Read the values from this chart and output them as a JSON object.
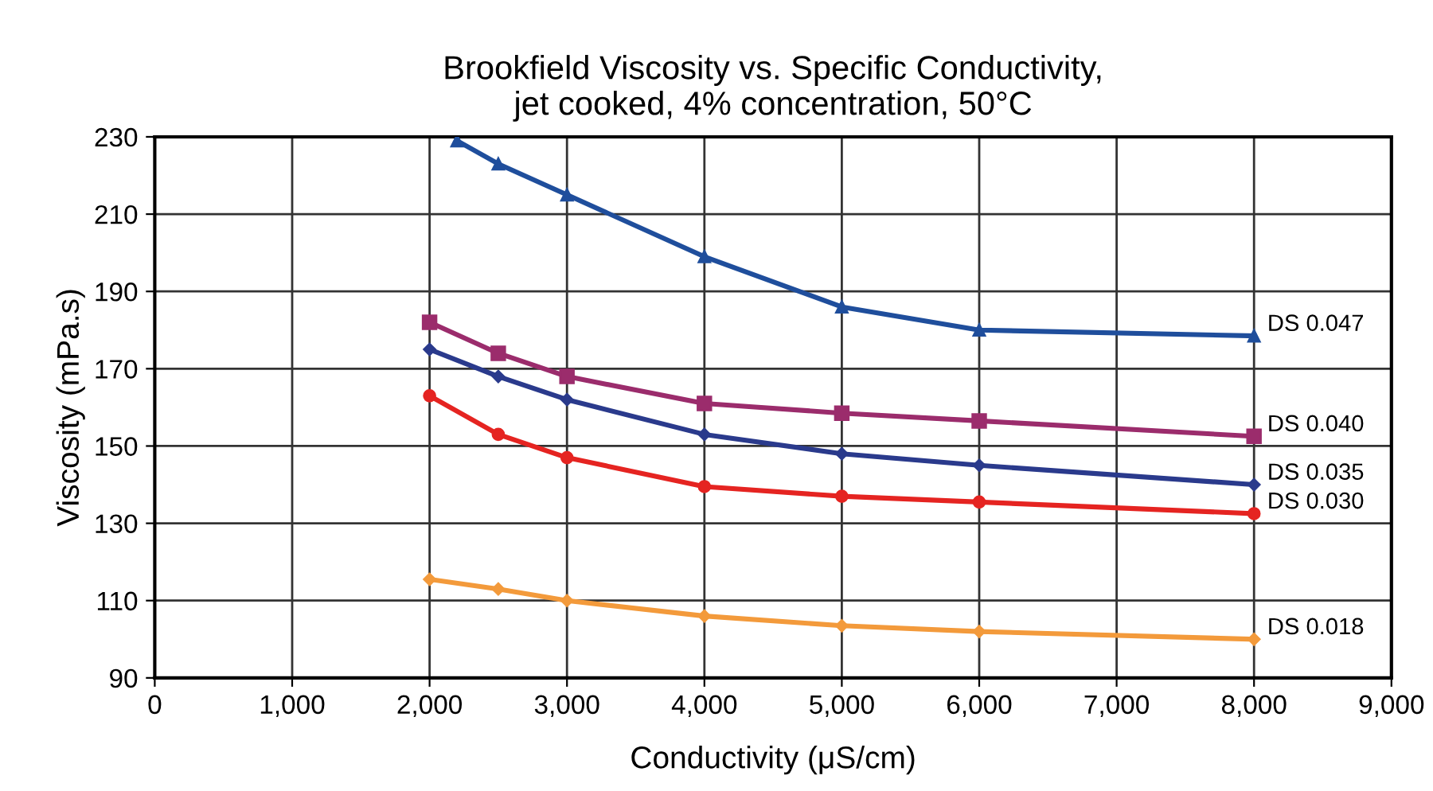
{
  "chart_data": {
    "type": "line",
    "title": "Brookfield Viscosity vs. Specific Conductivity,\njet cooked, 4% concentration, 50°C",
    "xlabel": "Conductivity (μS/cm)",
    "ylabel": "Viscosity (mPa.s)",
    "xlim": [
      0,
      9000
    ],
    "xticks": [
      0,
      {
        "value": 1000,
        "label": "1,000"
      },
      {
        "value": 2000,
        "label": "2,000"
      },
      {
        "value": 3000,
        "label": "3,000"
      },
      {
        "value": 4000,
        "label": "4,000"
      },
      {
        "value": 5000,
        "label": "5,000"
      },
      {
        "value": 6000,
        "label": "6,000"
      },
      {
        "value": 7000,
        "label": "7,000"
      },
      {
        "value": 8000,
        "label": "8,000"
      },
      {
        "value": 9000,
        "label": "9,000"
      }
    ],
    "ylim": [
      90,
      230
    ],
    "yticks": [
      90,
      110,
      130,
      150,
      170,
      190,
      210,
      230
    ],
    "grid": true,
    "legend": false,
    "line_style": "solid",
    "series": [
      {
        "name": "DS 0.047",
        "color": "#1f4e9c",
        "marker": "triangle",
        "x": [
          2200,
          2500,
          3000,
          4000,
          5000,
          6000,
          8000
        ],
        "values": [
          229,
          223,
          215,
          199,
          186,
          180,
          178.5
        ]
      },
      {
        "name": "DS 0.040",
        "color": "#9b2c6c",
        "marker": "square",
        "x": [
          2000,
          2500,
          3000,
          4000,
          5000,
          6000,
          8000
        ],
        "values": [
          182,
          174,
          168,
          161,
          158.5,
          156.5,
          152.5
        ]
      },
      {
        "name": "DS 0.035",
        "color": "#2a3a8c",
        "marker": "diamond",
        "x": [
          2000,
          2500,
          3000,
          4000,
          5000,
          6000,
          8000
        ],
        "values": [
          175,
          168,
          162,
          153,
          148,
          145,
          140
        ]
      },
      {
        "name": "DS 0.030",
        "color": "#e52421",
        "marker": "circle",
        "x": [
          2000,
          2500,
          3000,
          4000,
          5000,
          6000,
          8000
        ],
        "values": [
          163,
          153,
          147,
          139.5,
          137,
          135.5,
          132.5
        ]
      },
      {
        "name": "DS 0.018",
        "color": "#f39a3b",
        "marker": "diamond",
        "x": [
          2000,
          2500,
          3000,
          4000,
          5000,
          6000,
          8000
        ],
        "values": [
          115.5,
          113,
          110,
          106,
          103.5,
          102,
          100
        ]
      }
    ]
  }
}
